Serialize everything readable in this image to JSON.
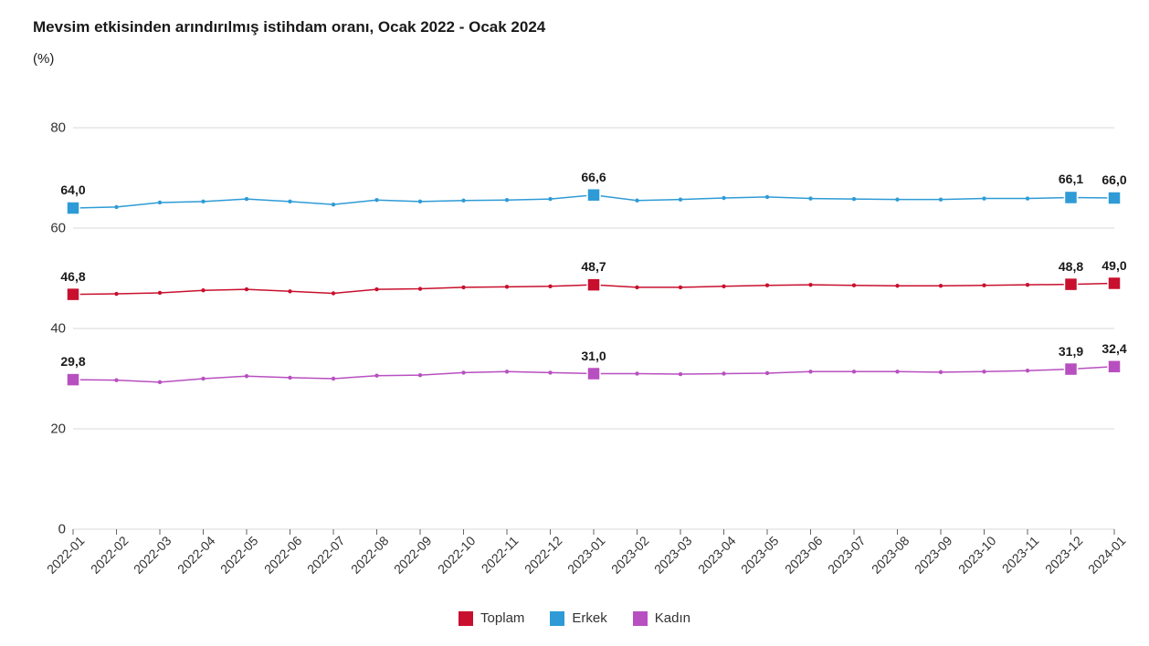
{
  "title": "Mevsim etkisinden arındırılmış istihdam oranı, Ocak 2022 - Ocak 2024",
  "subtitle": "(%)",
  "chart": {
    "type": "line",
    "background_color": "#ffffff",
    "grid_color": "#d9d9d9",
    "axis_color": "#666666",
    "tick_fontsize": 15,
    "title_fontsize": 17,
    "ylim": [
      0,
      80
    ],
    "ytick_step": 20,
    "categories": [
      "2022-01",
      "2022-02",
      "2022-03",
      "2022-04",
      "2022-05",
      "2022-06",
      "2022-07",
      "2022-08",
      "2022-09",
      "2022-10",
      "2022-11",
      "2022-12",
      "2023-01",
      "2023-02",
      "2023-03",
      "2023-04",
      "2023-05",
      "2023-06",
      "2023-07",
      "2023-08",
      "2023-09",
      "2023-10",
      "2023-11",
      "2023-12",
      "2024-01"
    ],
    "series": [
      {
        "name": "Toplam",
        "color": "#c8102e",
        "line_width": 1.5,
        "marker_size": 14,
        "values": [
          46.8,
          46.9,
          47.1,
          47.6,
          47.8,
          47.4,
          47.0,
          47.8,
          47.9,
          48.2,
          48.3,
          48.4,
          48.7,
          48.2,
          48.2,
          48.4,
          48.6,
          48.7,
          48.6,
          48.5,
          48.5,
          48.6,
          48.7,
          48.8,
          49.0
        ],
        "labels": [
          {
            "i": 0,
            "text": "46,8"
          },
          {
            "i": 12,
            "text": "48,7"
          },
          {
            "i": 23,
            "text": "48,8"
          },
          {
            "i": 24,
            "text": "49,0"
          }
        ],
        "marker_indices": [
          0,
          12,
          23,
          24
        ]
      },
      {
        "name": "Erkek",
        "color": "#2e9bd6",
        "line_width": 1.5,
        "marker_size": 14,
        "values": [
          64.0,
          64.2,
          65.1,
          65.3,
          65.8,
          65.3,
          64.7,
          65.6,
          65.3,
          65.5,
          65.6,
          65.8,
          66.6,
          65.5,
          65.7,
          66.0,
          66.2,
          65.9,
          65.8,
          65.7,
          65.7,
          65.9,
          65.9,
          66.1,
          66.0
        ],
        "labels": [
          {
            "i": 0,
            "text": "64,0"
          },
          {
            "i": 12,
            "text": "66,6"
          },
          {
            "i": 23,
            "text": "66,1"
          },
          {
            "i": 24,
            "text": "66,0"
          }
        ],
        "marker_indices": [
          0,
          12,
          23,
          24
        ]
      },
      {
        "name": "Kadın",
        "color": "#b84fc0",
        "line_width": 1.5,
        "marker_size": 14,
        "values": [
          29.8,
          29.7,
          29.3,
          30.0,
          30.5,
          30.2,
          30.0,
          30.6,
          30.7,
          31.2,
          31.4,
          31.2,
          31.0,
          31.0,
          30.9,
          31.0,
          31.1,
          31.4,
          31.4,
          31.4,
          31.3,
          31.4,
          31.6,
          31.9,
          32.4
        ],
        "labels": [
          {
            "i": 0,
            "text": "29,8"
          },
          {
            "i": 12,
            "text": "31,0"
          },
          {
            "i": 23,
            "text": "31,9"
          },
          {
            "i": 24,
            "text": "32,4"
          }
        ],
        "marker_indices": [
          0,
          12,
          23,
          24
        ]
      }
    ],
    "legend": {
      "position": "bottom",
      "items": [
        {
          "label": "Toplam",
          "color": "#c8102e"
        },
        {
          "label": "Erkek",
          "color": "#2e9bd6"
        },
        {
          "label": "Kadın",
          "color": "#b84fc0"
        }
      ]
    }
  }
}
